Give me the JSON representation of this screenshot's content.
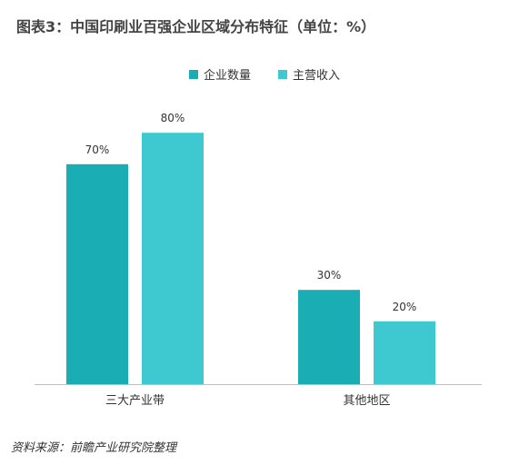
{
  "chart_data": {
    "type": "bar",
    "title": "图表3：中国印刷业百强企业区域分布特征（单位：%）",
    "categories": [
      "三大产业带",
      "其他地区"
    ],
    "series": [
      {
        "name": "企业数量",
        "values": [
          70,
          30
        ],
        "labels": [
          "70%",
          "30%"
        ],
        "color": "#1AADB3"
      },
      {
        "name": "主营收入",
        "values": [
          80,
          20
        ],
        "labels": [
          "80%",
          "20%"
        ],
        "color": "#3DC9CF"
      }
    ],
    "ylim": [
      0,
      100
    ],
    "legend": "top-center",
    "grid": false
  },
  "source": "资料来源：前瞻产业研究院整理"
}
